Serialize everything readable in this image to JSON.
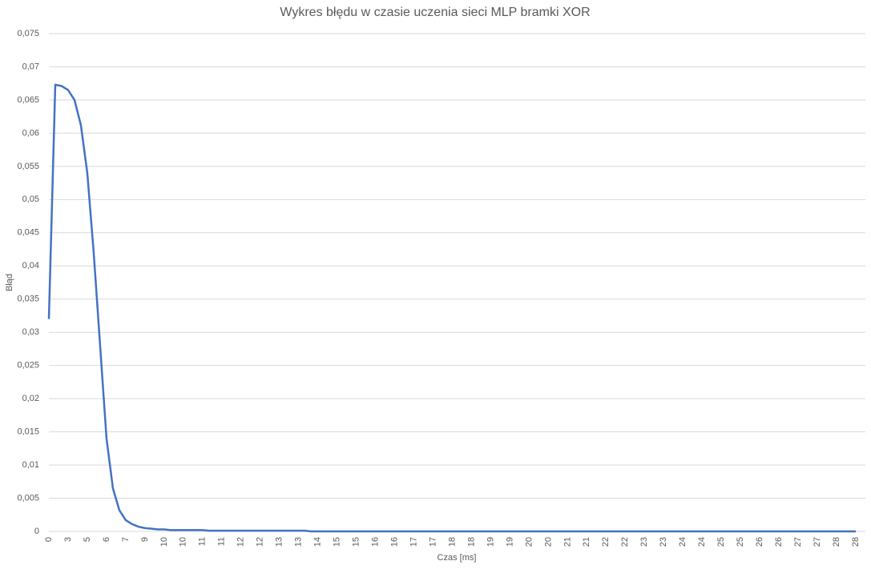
{
  "chart_data": {
    "type": "line",
    "title": "Wykres błędu w czasie uczenia sieci MLP bramki XOR",
    "x_label": "Czas [ms]",
    "y_label": "Błąd",
    "categories": [
      "0",
      null,
      null,
      "3",
      null,
      null,
      "5",
      null,
      null,
      "6",
      null,
      null,
      "7",
      null,
      null,
      "9",
      null,
      null,
      "10",
      null,
      null,
      "10",
      null,
      null,
      "11",
      null,
      null,
      "11",
      null,
      null,
      "12",
      null,
      null,
      "12",
      null,
      null,
      "13",
      null,
      null,
      "13",
      null,
      null,
      "14",
      null,
      null,
      "15",
      null,
      null,
      "15",
      null,
      null,
      "16",
      null,
      null,
      "16",
      null,
      null,
      "17",
      null,
      null,
      "17",
      null,
      null,
      "18",
      null,
      null,
      "18",
      null,
      null,
      "19",
      null,
      null,
      "19",
      null,
      null,
      "20",
      null,
      null,
      "20",
      null,
      null,
      "21",
      null,
      null,
      "21",
      null,
      null,
      "22",
      null,
      null,
      "22",
      null,
      null,
      "23",
      null,
      null,
      "23",
      null,
      null,
      "24",
      null,
      null,
      "24",
      null,
      null,
      "25",
      null,
      null,
      "25",
      null,
      null,
      "26",
      null,
      null,
      "26",
      null,
      null,
      "27",
      null,
      null,
      "27",
      null,
      null,
      "28",
      null,
      null,
      "28"
    ],
    "series": [
      {
        "name": "Błąd",
        "color": "#4472c4",
        "values": [
          0.032,
          0.0673,
          0.0671,
          0.0665,
          0.065,
          0.0612,
          0.054,
          0.042,
          0.028,
          0.014,
          0.0065,
          0.0032,
          0.0017,
          0.0011,
          0.0007,
          0.0005,
          0.0004,
          0.0003,
          0.0003,
          0.0002,
          0.0002,
          0.0002,
          0.0002,
          0.0002,
          0.0002,
          0.0001,
          0.0001,
          0.0001,
          0.0001,
          0.0001,
          0.0001,
          0.0001,
          0.0001,
          0.0001,
          0.0001,
          0.0001,
          0.0001,
          0.0001,
          0.0001,
          0.0001,
          0.0001,
          0,
          0,
          0,
          0,
          0,
          0,
          0,
          0,
          0,
          0,
          0,
          0,
          0,
          0,
          0,
          0,
          0,
          0,
          0,
          0,
          0,
          0,
          0,
          0,
          0,
          0,
          0,
          0,
          0,
          0,
          0,
          0,
          0,
          0,
          0,
          0,
          0,
          0,
          0,
          0,
          0,
          0,
          0,
          0,
          0,
          0,
          0,
          0,
          0,
          0,
          0,
          0,
          0,
          0,
          0,
          0,
          0,
          0,
          0,
          0,
          0,
          0,
          0,
          0,
          0,
          0,
          0,
          0,
          0,
          0,
          0,
          0,
          0,
          0,
          0,
          0,
          0,
          0,
          0,
          0,
          0,
          0,
          0,
          0,
          0,
          0
        ]
      }
    ],
    "ylim": [
      0,
      0.075
    ],
    "yticks": [
      0,
      {
        "value": 0.005,
        "label": "0,005"
      },
      {
        "value": 0.01,
        "label": "0,01"
      },
      {
        "value": 0.015,
        "label": "0,015"
      },
      {
        "value": 0.02,
        "label": "0,02"
      },
      {
        "value": 0.025,
        "label": "0,025"
      },
      {
        "value": 0.03,
        "label": "0,03"
      },
      {
        "value": 0.035,
        "label": "0,035"
      },
      {
        "value": 0.04,
        "label": "0,04"
      },
      {
        "value": 0.045,
        "label": "0,045"
      },
      {
        "value": 0.05,
        "label": "0,05"
      },
      {
        "value": 0.055,
        "label": "0,055"
      },
      {
        "value": 0.06,
        "label": "0,06"
      },
      {
        "value": 0.065,
        "label": "0,065"
      },
      {
        "value": 0.07,
        "label": "0,07"
      },
      {
        "value": 0.075,
        "label": "0,075"
      }
    ],
    "grid": true
  }
}
